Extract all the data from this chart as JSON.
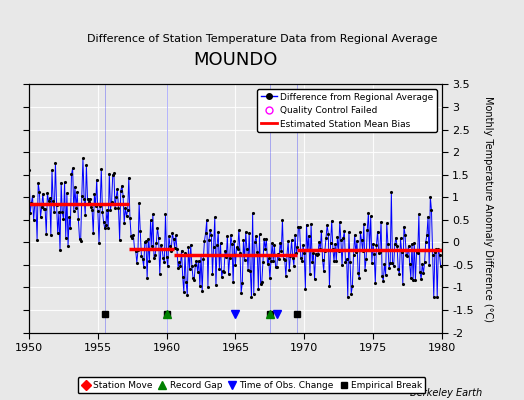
{
  "title": "MOUNDO",
  "subtitle": "Difference of Station Temperature Data from Regional Average",
  "ylabel": "Monthly Temperature Anomaly Difference (°C)",
  "xlim": [
    1950,
    1980
  ],
  "ylim": [
    -2,
    3.5
  ],
  "yticks": [
    -2,
    -1.5,
    -1,
    -0.5,
    0,
    0.5,
    1,
    1.5,
    2,
    2.5,
    3,
    3.5
  ],
  "xticks": [
    1950,
    1955,
    1960,
    1965,
    1970,
    1975,
    1980
  ],
  "background_color": "#e8e8e8",
  "watermark": "Berkeley Earth",
  "segments": [
    {
      "start": 1950.0,
      "end": 1957.3,
      "bias": 0.85
    },
    {
      "start": 1957.3,
      "end": 1960.5,
      "bias": -0.15
    },
    {
      "start": 1960.5,
      "end": 1965.5,
      "bias": -0.28
    },
    {
      "start": 1965.5,
      "end": 1969.5,
      "bias": -0.28
    },
    {
      "start": 1969.5,
      "end": 1980.0,
      "bias": -0.18
    }
  ],
  "empirical_breaks": [
    1955.5,
    1960.0,
    1967.5,
    1969.5
  ],
  "record_gaps": [
    1960.0,
    1967.5
  ],
  "obs_changes": [
    1965.0,
    1968.0
  ],
  "station_moves": []
}
